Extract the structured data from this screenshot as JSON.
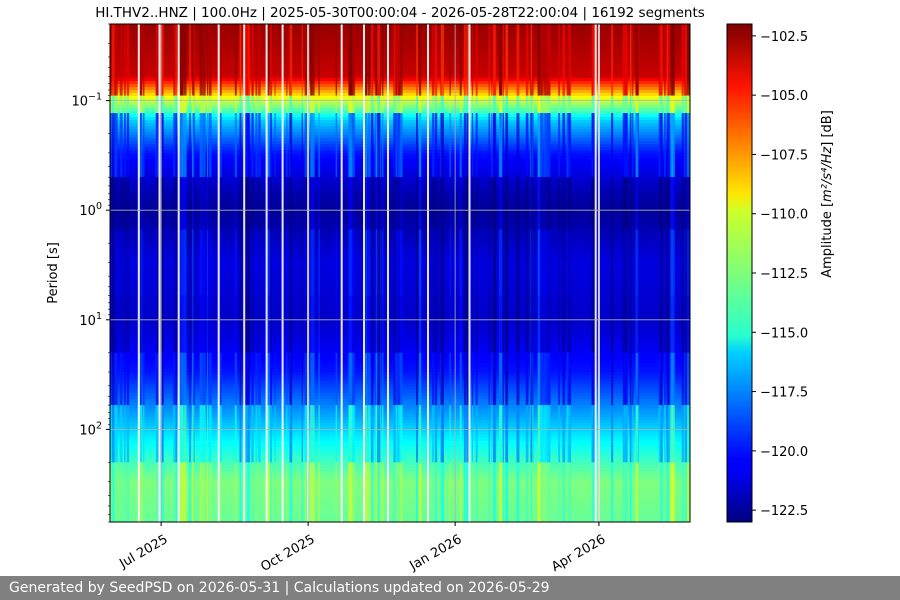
{
  "chart_data": {
    "type": "heatmap",
    "title": "HI.THV2..HNZ | 100.0Hz | 2025-05-30T00:00:04 - 2026-05-28T22:00:04 | 16192 segments",
    "xlabel": "",
    "ylabel": "Period [s]",
    "x_range": [
      "2025-05-30",
      "2026-05-28"
    ],
    "x_ticks": [
      {
        "date": "2025-07-01",
        "label": "Jul 2025"
      },
      {
        "date": "2025-10-01",
        "label": "Oct 2025"
      },
      {
        "date": "2026-01-01",
        "label": "Jan 2026"
      },
      {
        "date": "2026-04-01",
        "label": "Apr 2026"
      }
    ],
    "y_scale": "log",
    "y_inverted": true,
    "y_range": [
      0.02,
      700
    ],
    "y_ticks": [
      {
        "value": 0.1,
        "base": "10",
        "exp": "−1"
      },
      {
        "value": 1,
        "base": "10",
        "exp": "0"
      },
      {
        "value": 10,
        "base": "10",
        "exp": "1"
      },
      {
        "value": 100,
        "base": "10",
        "exp": "2"
      }
    ],
    "grid": true,
    "colorbar": {
      "label_prefix": "Amplitude [",
      "label_unit": "m²/s⁴/Hz",
      "label_suffix": "] [dB]",
      "range": [
        -123,
        -102
      ],
      "ticks": [
        "−102.5",
        "−105.0",
        "−107.5",
        "−110.0",
        "−112.5",
        "−115.0",
        "−117.5",
        "−120.0",
        "−122.5"
      ],
      "tick_values": [
        -102.5,
        -105.0,
        -107.5,
        -110.0,
        -112.5,
        -115.0,
        -117.5,
        -120.0,
        -122.5
      ],
      "colormap": "jet"
    },
    "amplitude_profile": [
      {
        "period": 0.02,
        "db": -102.5
      },
      {
        "period": 0.06,
        "db": -103.5
      },
      {
        "period": 0.1,
        "db": -111
      },
      {
        "period": 0.15,
        "db": -116
      },
      {
        "period": 0.3,
        "db": -120
      },
      {
        "period": 0.7,
        "db": -122
      },
      {
        "period": 1,
        "db": -122.5
      },
      {
        "period": 3,
        "db": -121
      },
      {
        "period": 10,
        "db": -121.5
      },
      {
        "period": 30,
        "db": -120
      },
      {
        "period": 100,
        "db": -116
      },
      {
        "period": 300,
        "db": -112.5
      },
      {
        "period": 700,
        "db": -113
      }
    ],
    "gaps": [
      "2025-06-17",
      "2025-06-30",
      "2025-07-12",
      "2025-08-06",
      "2025-08-22",
      "2025-09-05",
      "2025-09-15",
      "2025-10-01",
      "2025-10-22",
      "2025-11-05",
      "2025-11-20",
      "2025-12-15",
      "2026-01-10",
      "2026-03-30",
      "2026-04-01"
    ]
  },
  "footer": {
    "text": "Generated by SeedPSD on 2026-05-31 | Calculations updated on 2026-05-29"
  }
}
